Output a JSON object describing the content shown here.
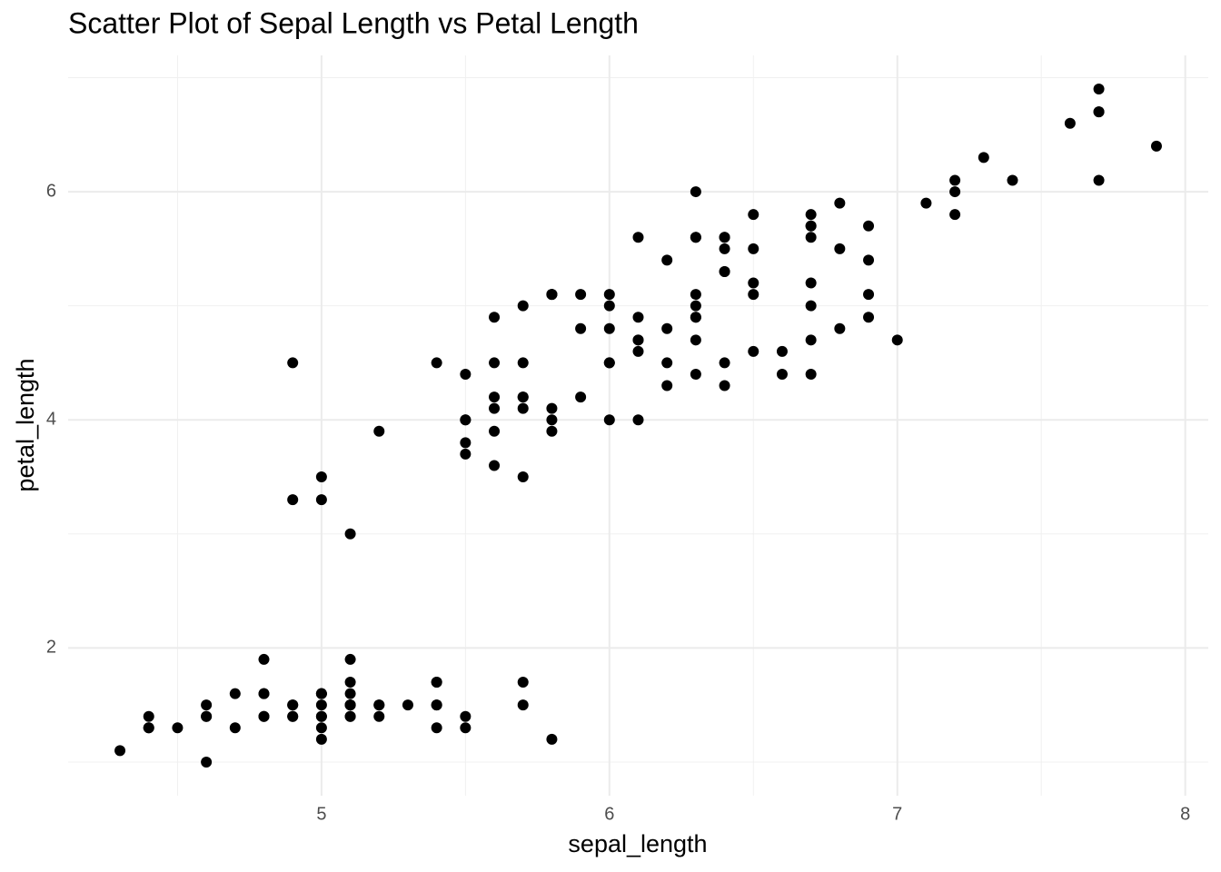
{
  "chart_data": {
    "type": "scatter",
    "title": "Scatter Plot of Sepal Length vs Petal Length",
    "x_label": "sepal_length",
    "y_label": "petal_length",
    "color": "#000000",
    "grid": true,
    "xlim": [
      4.12,
      8.08
    ],
    "ylim": [
      0.705,
      7.195
    ],
    "xticks": [
      5,
      6,
      7,
      8
    ],
    "yticks": [
      2,
      4,
      6
    ],
    "xminorticks": [
      4.5,
      5.5,
      6.5,
      7.5
    ],
    "yminorticks": [
      1,
      3,
      5,
      7
    ],
    "x": [
      5.1,
      4.9,
      4.7,
      4.6,
      5.0,
      5.4,
      4.6,
      5.0,
      4.4,
      4.9,
      5.4,
      4.8,
      4.8,
      4.3,
      5.8,
      5.7,
      5.4,
      5.1,
      5.7,
      5.1,
      5.4,
      5.1,
      4.6,
      5.1,
      4.8,
      5.0,
      5.0,
      5.2,
      5.2,
      4.7,
      4.8,
      5.4,
      5.2,
      5.5,
      4.9,
      5.0,
      5.5,
      4.9,
      4.4,
      5.1,
      5.0,
      4.5,
      4.4,
      5.0,
      5.1,
      4.8,
      5.1,
      4.6,
      5.3,
      5.0,
      7.0,
      6.4,
      6.9,
      5.5,
      6.5,
      5.7,
      6.3,
      4.9,
      6.6,
      5.2,
      5.0,
      5.9,
      6.0,
      6.1,
      5.6,
      6.7,
      5.6,
      5.8,
      6.2,
      5.6,
      5.9,
      6.1,
      6.3,
      6.1,
      6.4,
      6.6,
      6.8,
      6.7,
      6.0,
      5.7,
      5.5,
      5.5,
      5.8,
      6.0,
      5.4,
      6.0,
      6.7,
      6.3,
      5.6,
      5.5,
      5.5,
      6.1,
      5.8,
      5.0,
      5.6,
      5.7,
      5.7,
      6.2,
      5.1,
      5.7,
      6.3,
      5.8,
      7.1,
      6.3,
      6.5,
      7.6,
      4.9,
      7.3,
      6.7,
      7.2,
      6.5,
      6.4,
      6.8,
      5.7,
      5.8,
      6.4,
      6.5,
      7.7,
      7.7,
      6.0,
      6.9,
      5.6,
      7.7,
      6.3,
      6.7,
      7.2,
      6.2,
      6.1,
      6.4,
      7.2,
      7.4,
      7.9,
      6.4,
      6.3,
      6.1,
      7.7,
      6.3,
      6.4,
      6.0,
      6.9,
      6.7,
      6.9,
      5.8,
      6.8,
      6.7,
      6.7,
      6.3,
      6.5,
      6.2,
      5.9
    ],
    "y": [
      1.4,
      1.4,
      1.3,
      1.5,
      1.4,
      1.7,
      1.4,
      1.5,
      1.4,
      1.5,
      1.5,
      1.6,
      1.4,
      1.1,
      1.2,
      1.5,
      1.3,
      1.4,
      1.7,
      1.5,
      1.7,
      1.5,
      1.0,
      1.7,
      1.9,
      1.6,
      1.6,
      1.5,
      1.4,
      1.6,
      1.6,
      1.5,
      1.5,
      1.4,
      1.5,
      1.2,
      1.3,
      1.4,
      1.3,
      1.5,
      1.3,
      1.3,
      1.3,
      1.6,
      1.9,
      1.4,
      1.6,
      1.4,
      1.5,
      1.4,
      4.7,
      4.5,
      4.9,
      4.0,
      4.6,
      4.5,
      4.7,
      3.3,
      4.6,
      3.9,
      3.5,
      4.2,
      4.0,
      4.7,
      3.6,
      4.4,
      4.5,
      4.1,
      4.5,
      3.9,
      4.8,
      4.0,
      4.9,
      4.7,
      4.3,
      4.4,
      4.8,
      5.0,
      4.5,
      3.5,
      3.8,
      3.7,
      3.9,
      5.1,
      4.5,
      4.5,
      4.7,
      4.4,
      4.1,
      4.0,
      4.4,
      4.6,
      4.0,
      3.3,
      4.2,
      4.2,
      4.2,
      4.3,
      3.0,
      4.1,
      6.0,
      5.1,
      5.9,
      5.6,
      5.8,
      6.6,
      4.5,
      6.3,
      5.8,
      6.1,
      5.1,
      5.3,
      5.5,
      5.0,
      5.1,
      5.3,
      5.5,
      6.7,
      6.9,
      5.0,
      5.7,
      4.9,
      6.7,
      4.9,
      5.7,
      6.0,
      4.8,
      4.9,
      5.6,
      5.8,
      6.1,
      6.4,
      5.6,
      5.1,
      5.6,
      6.1,
      5.6,
      5.5,
      4.8,
      5.4,
      5.6,
      5.1,
      5.1,
      5.9,
      5.7,
      5.2,
      5.0,
      5.2,
      5.4,
      5.1
    ]
  }
}
